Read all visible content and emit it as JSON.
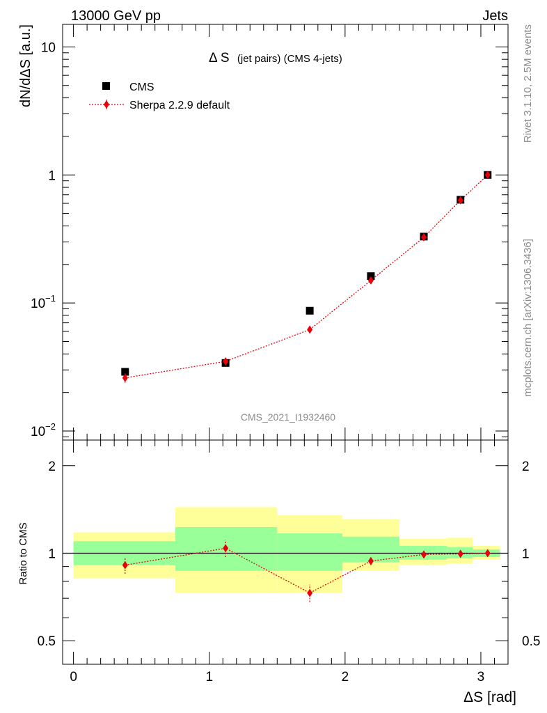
{
  "header": {
    "left": "13000 GeV pp",
    "right": "Jets"
  },
  "title": {
    "main": "Δ S",
    "sub": "(jet pairs) (CMS 4-jets)"
  },
  "side_labels": {
    "rivet": "Rivet 3.1.10,  2.5M events",
    "mcplots": "mcplots.cern.ch [arXiv:1306.3436]"
  },
  "watermark": "CMS_2021_I1932460",
  "colors": {
    "data": "#000000",
    "mc": "#e8000b",
    "band_inner": "#99ff99",
    "band_outer": "#ffff99"
  },
  "chart_data": [
    {
      "type": "scatter",
      "panel": "main",
      "ylabel": "dN/dΔS [a.u.]",
      "yscale": "log",
      "ylim": [
        0.0085,
        15
      ],
      "xlim": [
        -0.08,
        3.2
      ],
      "y_ticks": [
        {
          "value": 0.01,
          "label": "10",
          "sup": "−2"
        },
        {
          "value": 0.1,
          "label": "10",
          "sup": "−1"
        },
        {
          "value": 1,
          "label": "1",
          "sup": ""
        },
        {
          "value": 10,
          "label": "10",
          "sup": ""
        }
      ],
      "legend_position": "top-left",
      "series": [
        {
          "name": "CMS",
          "marker": "square",
          "x": [
            0.38,
            1.12,
            1.74,
            2.19,
            2.58,
            2.85,
            3.05
          ],
          "y": [
            0.029,
            0.034,
            0.087,
            0.162,
            0.33,
            0.64,
            1.0
          ]
        },
        {
          "name": "Sherpa 2.2.9 default",
          "marker": "diamond",
          "line": "dotted",
          "x": [
            0.38,
            1.12,
            1.74,
            2.19,
            2.58,
            2.85,
            3.05
          ],
          "y": [
            0.026,
            0.035,
            0.062,
            0.15,
            0.326,
            0.634,
            1.0
          ],
          "yerr": [
            0.0022,
            0.0025,
            0.003,
            0.006,
            0.01,
            0.015,
            0.02
          ]
        }
      ]
    },
    {
      "type": "scatter",
      "panel": "ratio",
      "ylabel": "Ratio to CMS",
      "xlabel": "ΔS [rad]",
      "yscale": "log",
      "ylim": [
        0.415,
        2.45
      ],
      "xlim": [
        -0.08,
        3.2
      ],
      "x_ticks": [
        0,
        1,
        2,
        3
      ],
      "y_ticks": [
        0.5,
        1,
        2
      ],
      "reference_line": 1,
      "bands": [
        {
          "x0": 0.0,
          "x1": 0.75,
          "inner": [
            0.91,
            1.1
          ],
          "outer": [
            0.82,
            1.18
          ]
        },
        {
          "x0": 0.75,
          "x1": 1.5,
          "inner": [
            0.87,
            1.23
          ],
          "outer": [
            0.73,
            1.44
          ]
        },
        {
          "x0": 1.5,
          "x1": 1.98,
          "inner": [
            0.87,
            1.17
          ],
          "outer": [
            0.73,
            1.35
          ]
        },
        {
          "x0": 1.98,
          "x1": 2.4,
          "inner": [
            0.93,
            1.14
          ],
          "outer": [
            0.87,
            1.31
          ]
        },
        {
          "x0": 2.4,
          "x1": 2.75,
          "inner": [
            0.95,
            1.06
          ],
          "outer": [
            0.91,
            1.12
          ]
        },
        {
          "x0": 2.75,
          "x1": 2.94,
          "inner": [
            0.96,
            1.05
          ],
          "outer": [
            0.92,
            1.13
          ]
        },
        {
          "x0": 2.94,
          "x1": 3.14,
          "inner": [
            0.97,
            1.03
          ],
          "outer": [
            0.95,
            1.06
          ]
        }
      ],
      "series": [
        {
          "name": "Sherpa 2.2.9 default",
          "marker": "diamond",
          "line": "dotted",
          "x": [
            0.38,
            1.12,
            1.74,
            2.19,
            2.58,
            2.85,
            3.05
          ],
          "y": [
            0.91,
            1.04,
            0.73,
            0.94,
            0.99,
            0.995,
            1.0
          ],
          "yerr": [
            0.06,
            0.07,
            0.05,
            0.03,
            0.025,
            0.02,
            0.015
          ]
        }
      ]
    }
  ]
}
